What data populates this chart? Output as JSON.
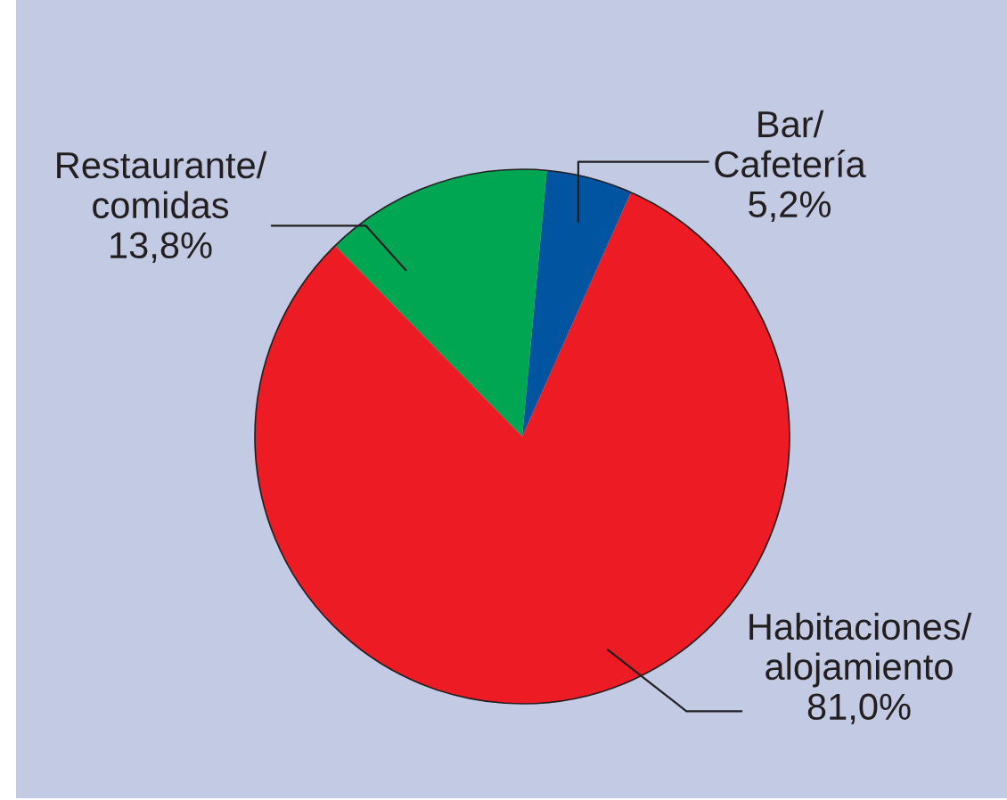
{
  "chart_data": {
    "type": "pie",
    "categories": [
      "Bar/\nCafetería",
      "Restaurante/\ncomidas",
      "Habitaciones/\nalojamiento"
    ],
    "values": [
      5.2,
      13.8,
      81.0
    ],
    "value_labels": [
      "5,2%",
      "13,8%",
      "81,0%"
    ],
    "colors": [
      "#0054a0",
      "#00a651",
      "#ed1c24"
    ]
  }
}
